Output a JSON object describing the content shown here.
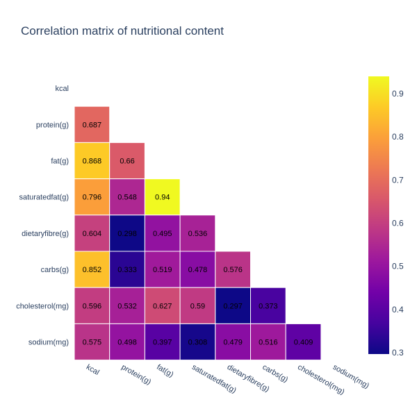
{
  "chart_data": {
    "type": "heatmap",
    "title": "Correlation matrix of nutritional content",
    "variables": [
      "kcal",
      "protein(g)",
      "fat(g)",
      "saturatedfat(g)",
      "dietaryfibre(g)",
      "carbs(g)",
      "cholesterol(mg)",
      "sodium(mg)"
    ],
    "matrix": [
      [
        null,
        null,
        null,
        null,
        null,
        null,
        null,
        null
      ],
      [
        0.687,
        null,
        null,
        null,
        null,
        null,
        null,
        null
      ],
      [
        0.868,
        0.66,
        null,
        null,
        null,
        null,
        null,
        null
      ],
      [
        0.796,
        0.548,
        0.94,
        null,
        null,
        null,
        null,
        null
      ],
      [
        0.604,
        0.298,
        0.495,
        0.536,
        null,
        null,
        null,
        null
      ],
      [
        0.852,
        0.333,
        0.519,
        0.478,
        0.576,
        null,
        null,
        null
      ],
      [
        0.596,
        0.532,
        0.627,
        0.59,
        0.297,
        0.373,
        null,
        null
      ],
      [
        0.575,
        0.498,
        0.397,
        0.308,
        0.479,
        0.516,
        0.409,
        null
      ]
    ],
    "colorscale": "plasma",
    "zmin": 0.297,
    "zmax": 0.94,
    "colorbar_ticks": [
      "0.3",
      "0.4",
      "0.5",
      "0.6",
      "0.7",
      "0.8",
      "0.9"
    ]
  }
}
